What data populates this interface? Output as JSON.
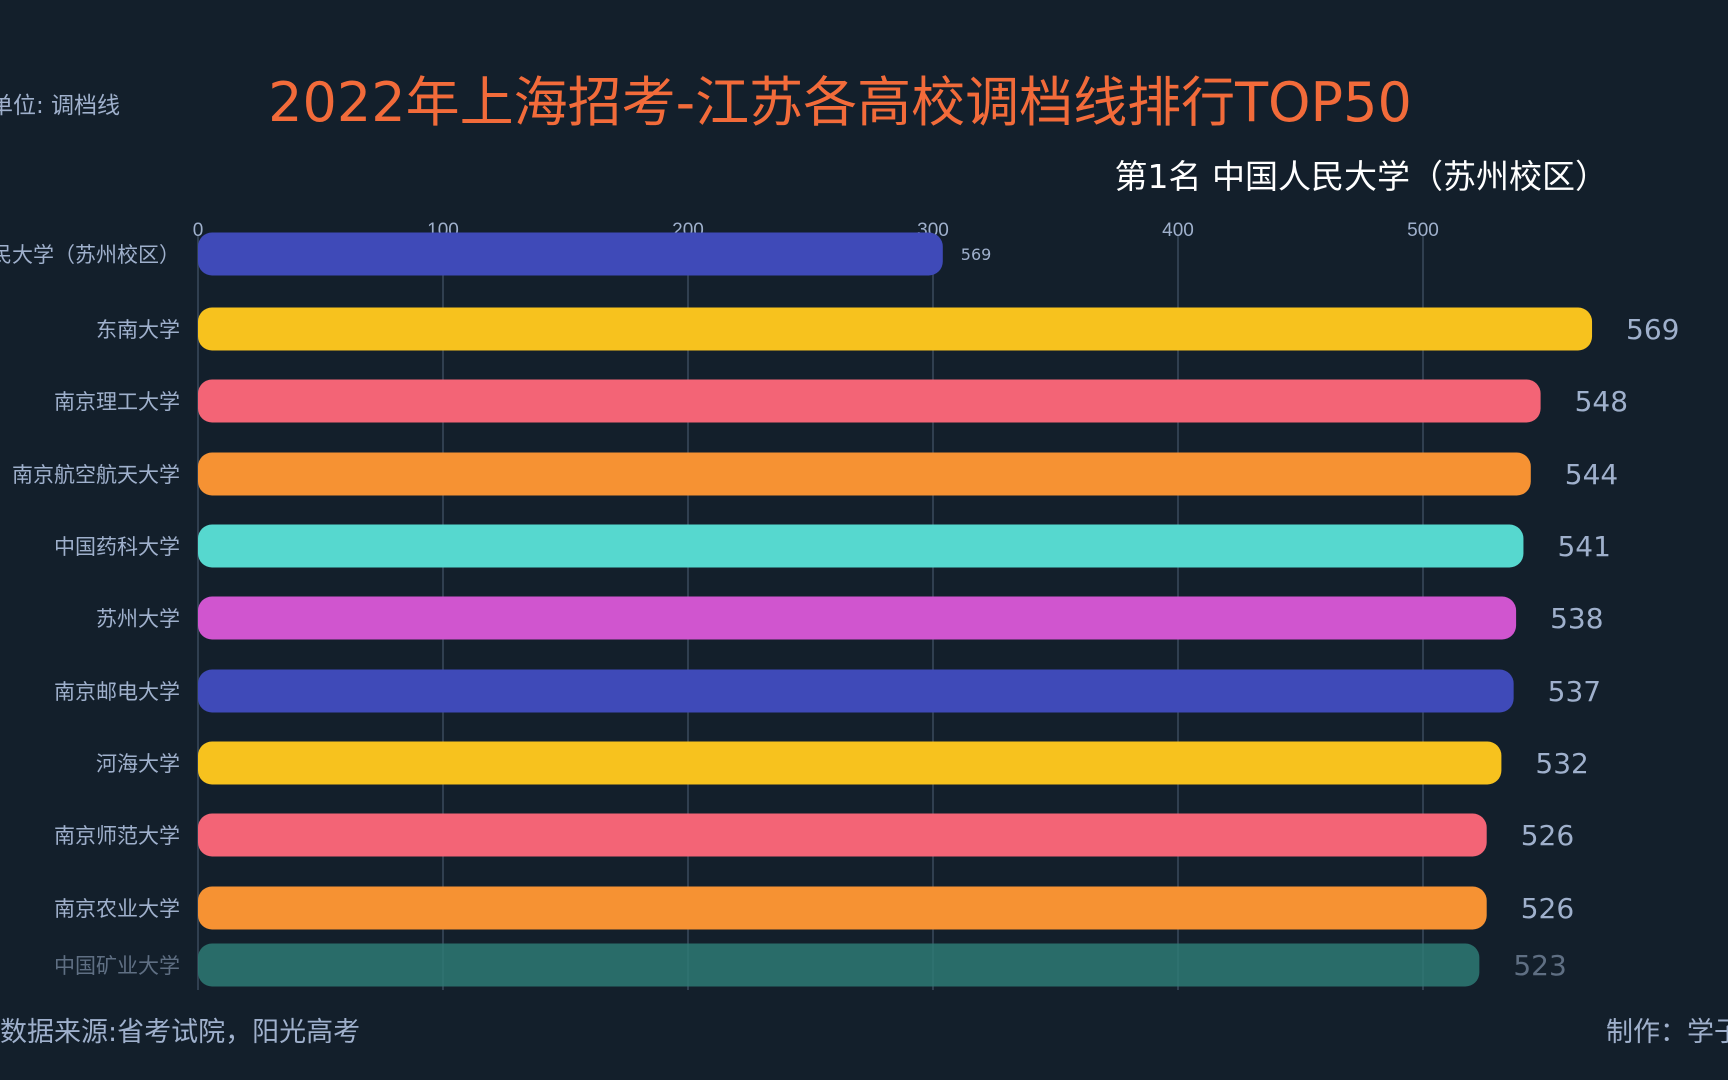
{
  "title": "2022年上海招考-江苏各高校调档线排行TOP50",
  "unit_label": "单位: 调档线",
  "subtitle": "第1名 中国人民大学（苏州校区）",
  "footer": {
    "source": "数据来源:省考试院，阳光高考",
    "credit": "制作：学子"
  },
  "colors": {
    "background": "#131f2b",
    "title": "#f26b3a",
    "label": "#9fb0cc",
    "grid": "#3a4a5c"
  },
  "chart_data": {
    "type": "bar",
    "orientation": "horizontal",
    "xlim": [
      0,
      600
    ],
    "ticks": [
      "0",
      "100",
      "200",
      "300",
      "400",
      "500"
    ],
    "grid": true,
    "categories": [
      "中国人民大学（苏州校区）",
      "东南大学",
      "南京理工大学",
      "南京航空航天大学",
      "中国药科大学",
      "苏州大学",
      "南京邮电大学",
      "河海大学",
      "南京师范大学",
      "南京农业大学",
      "中国矿业大学"
    ],
    "values": [
      569,
      569,
      548,
      544,
      541,
      538,
      537,
      532,
      526,
      526,
      523
    ],
    "shown_lengths": [
      304,
      569,
      548,
      544,
      541,
      538,
      537,
      532,
      526,
      526,
      523
    ],
    "colors": [
      "#3f4ab8",
      "#f7c21e",
      "#f36476",
      "#f69233",
      "#56d8cf",
      "#d055cf",
      "#3f4ab8",
      "#f7c21e",
      "#f36476",
      "#f69233",
      "#2e7a74"
    ]
  }
}
